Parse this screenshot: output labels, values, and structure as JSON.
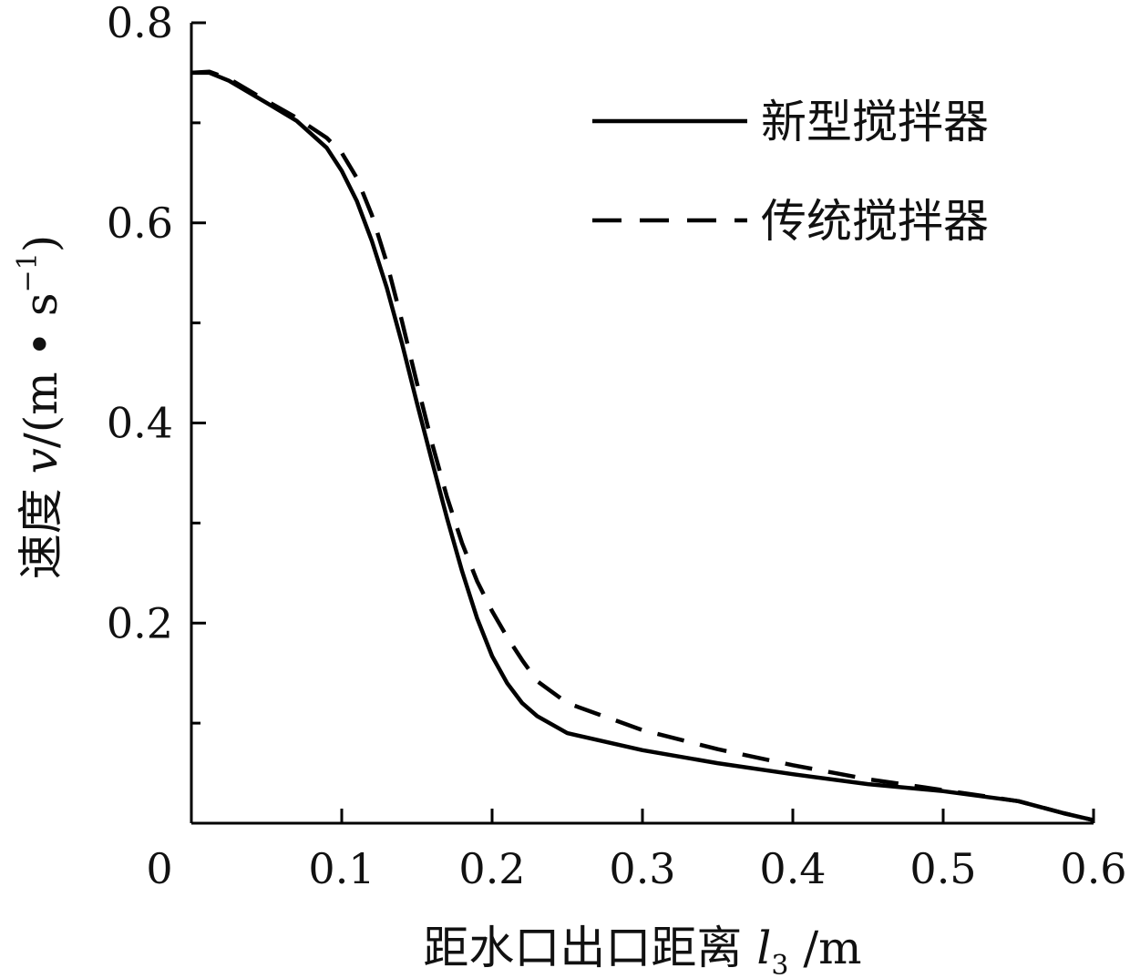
{
  "chart_data": {
    "type": "line",
    "xlabel": {
      "main": "距水口出口距离 ",
      "var": "l",
      "sub": "3",
      "unit": " /m"
    },
    "ylabel": {
      "main": "速度 ",
      "var": "v",
      "unit_open": "/(m • s",
      "unit_sup": "−1",
      "unit_close": ")"
    },
    "xlim": [
      0,
      0.6
    ],
    "ylim": [
      0,
      0.8
    ],
    "x_ticks": [
      0,
      0.1,
      0.2,
      0.3,
      0.4,
      0.5,
      0.6
    ],
    "x_tick_labels": [
      "0",
      "0.1",
      "0.2",
      "0.3",
      "0.4",
      "0.5",
      "0.6"
    ],
    "y_ticks": [
      0.2,
      0.4,
      0.6,
      0.8
    ],
    "y_tick_labels": [
      "0.2",
      "0.4",
      "0.6",
      "0.8"
    ],
    "y_minor_ticks": [
      0.1,
      0.3,
      0.5,
      0.7
    ],
    "grid": false,
    "legend_position": "top-right",
    "series": [
      {
        "name": "新型搅拌器",
        "style": "solid",
        "color": "#000000",
        "points": [
          [
            0.0,
            0.75
          ],
          [
            0.012,
            0.75
          ],
          [
            0.025,
            0.742
          ],
          [
            0.05,
            0.72
          ],
          [
            0.07,
            0.702
          ],
          [
            0.09,
            0.675
          ],
          [
            0.1,
            0.652
          ],
          [
            0.11,
            0.622
          ],
          [
            0.12,
            0.582
          ],
          [
            0.13,
            0.535
          ],
          [
            0.14,
            0.48
          ],
          [
            0.15,
            0.42
          ],
          [
            0.16,
            0.362
          ],
          [
            0.17,
            0.305
          ],
          [
            0.18,
            0.252
          ],
          [
            0.19,
            0.205
          ],
          [
            0.2,
            0.167
          ],
          [
            0.21,
            0.14
          ],
          [
            0.22,
            0.12
          ],
          [
            0.23,
            0.107
          ],
          [
            0.25,
            0.09
          ],
          [
            0.3,
            0.073
          ],
          [
            0.35,
            0.06
          ],
          [
            0.4,
            0.049
          ],
          [
            0.45,
            0.039
          ],
          [
            0.5,
            0.032
          ],
          [
            0.55,
            0.022
          ],
          [
            0.58,
            0.01
          ],
          [
            0.6,
            0.003
          ]
        ]
      },
      {
        "name": "传统搅拌器",
        "style": "dashed",
        "color": "#000000",
        "points": [
          [
            0.0,
            0.75
          ],
          [
            0.012,
            0.751
          ],
          [
            0.025,
            0.744
          ],
          [
            0.05,
            0.722
          ],
          [
            0.07,
            0.705
          ],
          [
            0.09,
            0.685
          ],
          [
            0.1,
            0.67
          ],
          [
            0.11,
            0.645
          ],
          [
            0.12,
            0.608
          ],
          [
            0.13,
            0.56
          ],
          [
            0.14,
            0.502
          ],
          [
            0.15,
            0.44
          ],
          [
            0.16,
            0.38
          ],
          [
            0.17,
            0.326
          ],
          [
            0.18,
            0.28
          ],
          [
            0.19,
            0.242
          ],
          [
            0.2,
            0.212
          ],
          [
            0.21,
            0.186
          ],
          [
            0.22,
            0.163
          ],
          [
            0.23,
            0.142
          ],
          [
            0.25,
            0.12
          ],
          [
            0.3,
            0.093
          ],
          [
            0.35,
            0.074
          ],
          [
            0.4,
            0.058
          ],
          [
            0.45,
            0.044
          ],
          [
            0.5,
            0.033
          ],
          [
            0.55,
            0.022
          ],
          [
            0.58,
            0.01
          ],
          [
            0.6,
            0.003
          ]
        ]
      }
    ]
  }
}
